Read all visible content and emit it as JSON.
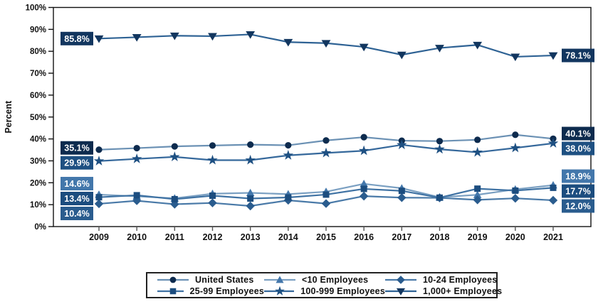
{
  "chart_data": {
    "type": "line",
    "title": "",
    "ylabel": "Percent",
    "ylim": [
      0,
      100
    ],
    "ytick_labels": [
      "0%",
      "10%",
      "20%",
      "30%",
      "40%",
      "50%",
      "60%",
      "70%",
      "80%",
      "90%",
      "100%"
    ],
    "x_labels": [
      "2009",
      "2010",
      "2011",
      "2012",
      "2013",
      "2014",
      "2015",
      "2016",
      "2017",
      "2018",
      "2019",
      "2020",
      "2021"
    ],
    "grid": false,
    "legend_position": "bottom",
    "legend_columns": 3,
    "series": [
      {
        "name": "United States",
        "marker": "circle",
        "color": "#0d2b4e",
        "line_color": "#6b91b4",
        "values": [
          35.1,
          35.8,
          36.6,
          37.0,
          37.4,
          37.1,
          39.3,
          40.8,
          39.2,
          39.0,
          39.6,
          41.9,
          40.1
        ],
        "first_label": "35.1%",
        "last_label": "40.1%"
      },
      {
        "name": "<10 Employees",
        "marker": "triangle",
        "color": "#4377ab",
        "line_color": "#7ba0c2",
        "values": [
          14.6,
          13.8,
          12.9,
          15.0,
          15.4,
          14.8,
          15.9,
          19.5,
          17.5,
          13.4,
          14.5,
          17.0,
          18.9
        ],
        "first_label": "14.6%",
        "last_label": "18.9%"
      },
      {
        "name": "10-24 Employees",
        "marker": "diamond",
        "color": "#2a5c8e",
        "line_color": "#4a7aa8",
        "values": [
          10.4,
          11.8,
          10.2,
          10.8,
          9.4,
          12.0,
          10.5,
          13.9,
          13.2,
          13.1,
          12.2,
          12.9,
          12.0
        ],
        "first_label": "10.4%",
        "last_label": "12.0%"
      },
      {
        "name": "25-99 Employees",
        "marker": "square",
        "color": "#1c4d7f",
        "line_color": "#3f72a3",
        "values": [
          13.4,
          14.3,
          12.5,
          14.1,
          12.8,
          13.3,
          14.6,
          17.2,
          16.3,
          13.2,
          17.3,
          16.4,
          17.7
        ],
        "first_label": "13.4%",
        "last_label": "17.7%"
      },
      {
        "name": "100-999 Employees",
        "marker": "star",
        "color": "#1e5082",
        "line_color": "#35689b",
        "values": [
          29.9,
          30.9,
          31.8,
          30.3,
          30.3,
          32.5,
          33.6,
          34.6,
          37.3,
          35.3,
          33.9,
          35.9,
          38.0
        ],
        "first_label": "29.9%",
        "last_label": "38.0%"
      },
      {
        "name": "1,000+ Employees",
        "marker": "triangle-down",
        "color": "#12365f",
        "line_color": "#2e6294",
        "values": [
          85.8,
          86.4,
          87.1,
          86.9,
          87.7,
          84.2,
          83.7,
          82.0,
          78.4,
          81.5,
          82.9,
          77.5,
          78.1
        ],
        "first_label": "85.8%",
        "last_label": "78.1%"
      }
    ]
  }
}
